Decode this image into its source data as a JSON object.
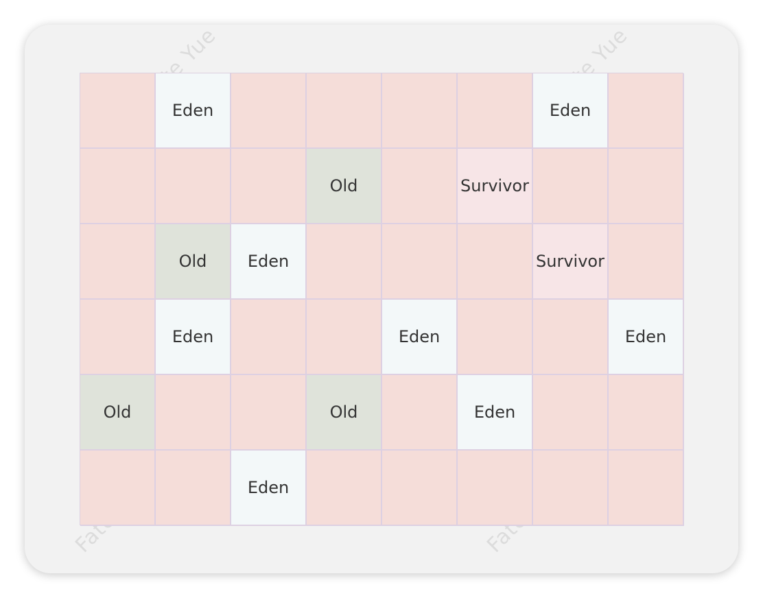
{
  "diagram": {
    "watermark": "Fate Yue",
    "legend_colors": {
      "empty": "#f5ddd9",
      "eden": "#f3f8f9",
      "old": "#dfe3da",
      "survivor": "#f7e5e7"
    },
    "labels": {
      "empty": "",
      "eden": "Eden",
      "old": "Old",
      "survivor": "Survivor"
    },
    "regions": [
      [
        "empty",
        "eden",
        "empty",
        "empty",
        "empty",
        "empty",
        "eden",
        "empty"
      ],
      [
        "empty",
        "empty",
        "empty",
        "old",
        "empty",
        "survivor",
        "empty",
        "empty"
      ],
      [
        "empty",
        "old",
        "eden",
        "empty",
        "empty",
        "empty",
        "survivor",
        "empty"
      ],
      [
        "empty",
        "eden",
        "empty",
        "empty",
        "eden",
        "empty",
        "empty",
        "eden"
      ],
      [
        "old",
        "empty",
        "empty",
        "old",
        "empty",
        "eden",
        "empty",
        "empty"
      ],
      [
        "empty",
        "empty",
        "eden",
        "empty",
        "empty",
        "empty",
        "empty",
        "empty"
      ]
    ]
  }
}
